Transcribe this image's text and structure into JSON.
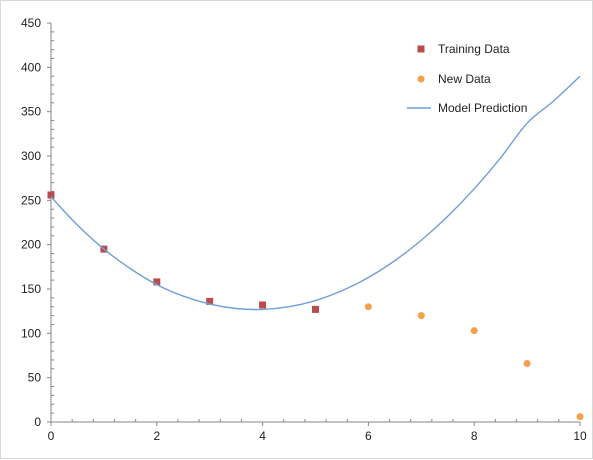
{
  "chart_data": {
    "type": "scatter",
    "title": "",
    "xlabel": "",
    "ylabel": "",
    "xlim": [
      0,
      10
    ],
    "ylim": [
      0,
      450
    ],
    "x_ticks": [
      0,
      2,
      4,
      6,
      8,
      10
    ],
    "y_ticks": [
      0,
      50,
      100,
      150,
      200,
      250,
      300,
      350,
      400,
      450
    ],
    "grid": false,
    "legend_position": "top-right",
    "series": [
      {
        "name": "Training Data",
        "kind": "scatter",
        "marker": "square",
        "color": "#b84c4c",
        "points": [
          [
            0,
            256
          ],
          [
            1,
            195
          ],
          [
            2,
            158
          ],
          [
            3,
            136
          ],
          [
            4,
            132
          ],
          [
            5,
            127
          ]
        ]
      },
      {
        "name": "New Data",
        "kind": "scatter",
        "marker": "circle",
        "color": "#f5a04a",
        "points": [
          [
            6,
            130
          ],
          [
            7,
            120
          ],
          [
            8,
            103
          ],
          [
            9,
            66
          ],
          [
            10,
            6
          ]
        ]
      },
      {
        "name": "Model Prediction",
        "kind": "line",
        "color": "#6f9fd8",
        "points": [
          [
            0,
            254
          ],
          [
            0.5,
            222
          ],
          [
            1,
            195
          ],
          [
            1.5,
            173
          ],
          [
            2,
            155
          ],
          [
            2.5,
            142
          ],
          [
            3,
            133
          ],
          [
            3.5,
            128
          ],
          [
            4,
            127
          ],
          [
            4.5,
            130
          ],
          [
            5,
            137
          ],
          [
            5.5,
            148
          ],
          [
            6,
            163
          ],
          [
            6.5,
            182
          ],
          [
            7,
            205
          ],
          [
            7.5,
            232
          ],
          [
            8,
            263
          ],
          [
            8.5,
            298
          ],
          [
            9,
            337
          ],
          [
            9.5,
            362
          ],
          [
            10,
            390
          ]
        ]
      }
    ]
  }
}
